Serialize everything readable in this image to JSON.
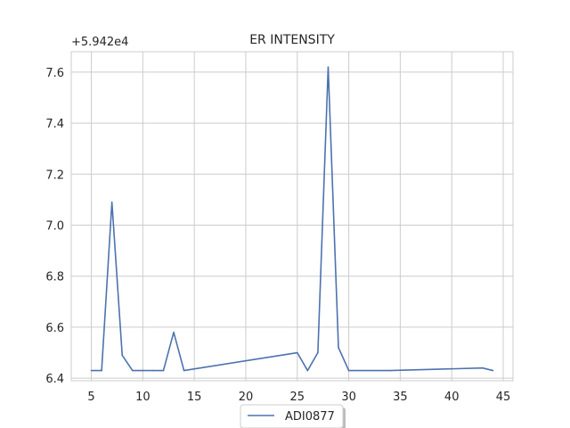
{
  "chart_data": {
    "type": "line",
    "title": "ER INTENSITY",
    "offset_label": "+5.942e4",
    "xlabel": "",
    "ylabel": "",
    "xlim": [
      3.05,
      45.95
    ],
    "ylim": [
      6.39,
      7.68
    ],
    "x_ticks": [
      5,
      10,
      15,
      20,
      25,
      30,
      35,
      40,
      45
    ],
    "y_ticks": [
      6.4,
      6.6,
      6.8,
      7.0,
      7.2,
      7.4,
      7.6
    ],
    "y_tick_labels": [
      "6.4",
      "6.6",
      "6.8",
      "7.0",
      "7.2",
      "7.4",
      "7.6"
    ],
    "grid": true,
    "legend_position": "bottom-center",
    "series": [
      {
        "name": "ADI0877",
        "color": "#4c72b0",
        "x": [
          5,
          6,
          7,
          8,
          9,
          10,
          11,
          12,
          13,
          14,
          25,
          26,
          27,
          28,
          29,
          30,
          34,
          43,
          44
        ],
        "y": [
          6.43,
          6.43,
          7.09,
          6.49,
          6.43,
          6.43,
          6.43,
          6.43,
          6.58,
          6.43,
          6.5,
          6.43,
          6.5,
          7.62,
          6.52,
          6.43,
          6.43,
          6.44,
          6.43
        ]
      }
    ]
  }
}
